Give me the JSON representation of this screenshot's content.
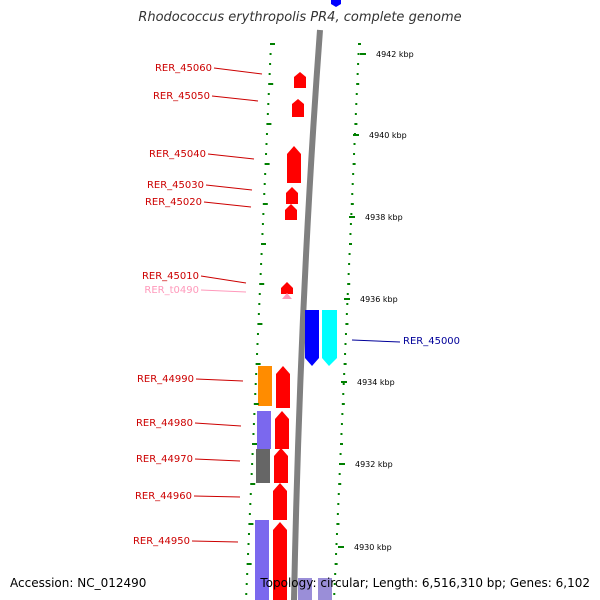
{
  "title": "Rhodococcus erythropolis PR4, complete genome",
  "accession": "Accession: NC_012490",
  "summary": "Topology: circular; Length: 6,516,310 bp; Genes: 6,102",
  "colors": {
    "forward_gene": "#ff0000",
    "reverse_gene_blue": "#0000ff",
    "reverse_gene_cyan": "#00ffff",
    "trna": "#ff99bb",
    "label_red": "#cc0000",
    "label_blue": "#000099",
    "label_trna": "#ff99bb",
    "backbone": "#808080",
    "ticks": "#008000",
    "orange": "#ff8c00",
    "purple": "#7b68ee",
    "gray": "#666666",
    "lavender": "#9a8ed8"
  },
  "ruler": {
    "labels": [
      "4942 kbp",
      "4940 kbp",
      "4938 kbp",
      "4936 kbp",
      "4934 kbp",
      "4932 kbp",
      "4930 kbp"
    ]
  },
  "genes": {
    "left": [
      {
        "name": "RER_45060",
        "type": "cds"
      },
      {
        "name": "RER_45050",
        "type": "cds"
      },
      {
        "name": "RER_45040",
        "type": "cds"
      },
      {
        "name": "RER_45030",
        "type": "cds"
      },
      {
        "name": "RER_45020",
        "type": "cds"
      },
      {
        "name": "RER_45010",
        "type": "cds"
      },
      {
        "name": "RER_t0490",
        "type": "trna"
      },
      {
        "name": "RER_44990",
        "type": "cds"
      },
      {
        "name": "RER_44980",
        "type": "cds"
      },
      {
        "name": "RER_44970",
        "type": "cds"
      },
      {
        "name": "RER_44960",
        "type": "cds"
      },
      {
        "name": "RER_44950",
        "type": "cds"
      }
    ],
    "right": [
      {
        "name": "RER_45000",
        "type": "cds"
      }
    ]
  }
}
